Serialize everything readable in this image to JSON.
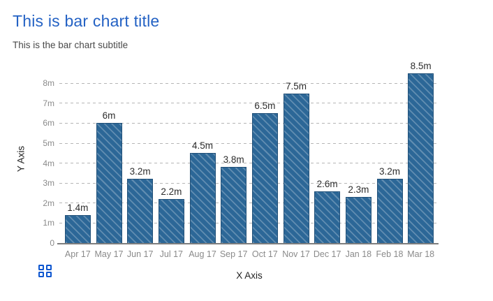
{
  "header": {
    "title": "This is bar chart title",
    "subtitle": "This is the bar chart subtitle"
  },
  "chart_data": {
    "type": "bar",
    "title": "This is bar chart title",
    "subtitle": "This is the bar chart subtitle",
    "xlabel": "X Axis",
    "ylabel": "Y Axis",
    "categories": [
      "Apr 17",
      "May 17",
      "Jun 17",
      "Jul 17",
      "Aug 17",
      "Sep 17",
      "Oct 17",
      "Nov 17",
      "Dec 17",
      "Jan 18",
      "Feb 18",
      "Mar 18"
    ],
    "values": [
      1.4,
      6,
      3.2,
      2.2,
      4.5,
      3.8,
      6.5,
      7.5,
      2.6,
      2.3,
      3.2,
      8.5
    ],
    "value_labels": [
      "1.4m",
      "6m",
      "3.2m",
      "2.2m",
      "4.5m",
      "3.8m",
      "6.5m",
      "7.5m",
      "2.6m",
      "2.3m",
      "3.2m",
      "8.5m"
    ],
    "y_ticks": [
      {
        "value": 0,
        "label": "0"
      },
      {
        "value": 1,
        "label": "1m"
      },
      {
        "value": 2,
        "label": "2m"
      },
      {
        "value": 3,
        "label": "3m"
      },
      {
        "value": 4,
        "label": "4m"
      },
      {
        "value": 5,
        "label": "5m"
      },
      {
        "value": 6,
        "label": "6m"
      },
      {
        "value": 7,
        "label": "7m"
      },
      {
        "value": 8,
        "label": "8m"
      }
    ],
    "ylim": [
      0,
      8.7
    ],
    "grid": "horizontal-dashed",
    "legend": "none",
    "bar_pattern": "diagonal-stripes"
  },
  "icons": {
    "grid_icon": "grid-2x2-squares"
  },
  "colors": {
    "title_blue": "#2462c4",
    "subtitle_gray": "#4a4a4a",
    "bar_fill": "#2c6797",
    "bar_stripe": "rgba(255,255,255,0.25)",
    "bar_border": "#215078",
    "gridline_gray": "#b5b5b5",
    "axis_line_gray": "#7d7d7d",
    "tick_gray": "#8a8a8a",
    "label_dark": "#2d2d2d",
    "icon_blue": "#0d56d0"
  }
}
